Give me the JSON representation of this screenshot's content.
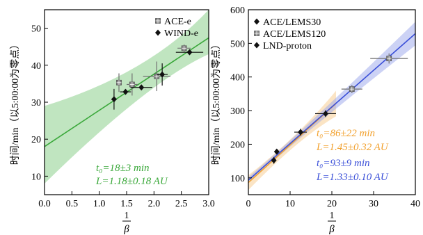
{
  "chart_data": [
    {
      "type": "scatter",
      "title": "",
      "xlabel": "1/β",
      "ylabel": "时间/min（以5:00:00为零点）",
      "xlim": [
        0.0,
        3.0
      ],
      "ylim": [
        5,
        55
      ],
      "xticks": [
        "0.0",
        "0.5",
        "1.0",
        "1.5",
        "2.0",
        "2.5",
        "3.0"
      ],
      "yticks": [
        "10",
        "20",
        "30",
        "40",
        "50"
      ],
      "grid": false,
      "legend_position": "top-right",
      "series": [
        {
          "name": "ACE-e",
          "marker": "gray-cross",
          "points": [
            {
              "x": 1.36,
              "y": 35.3,
              "xerr": 0.05,
              "yerr": 2.5
            },
            {
              "x": 1.6,
              "y": 34.8,
              "xerr": 0.1,
              "yerr": 3.0
            },
            {
              "x": 2.05,
              "y": 37.0,
              "xerr": 0.25,
              "yerr": 4.0
            },
            {
              "x": 2.55,
              "y": 44.6,
              "xerr": 0.12,
              "yerr": 1.0
            }
          ]
        },
        {
          "name": "WIND-e",
          "marker": "black-diamond",
          "points": [
            {
              "x": 1.27,
              "y": 30.8,
              "xerr": 0.05,
              "yerr": 2.8
            },
            {
              "x": 1.48,
              "y": 32.8,
              "xerr": 0.1,
              "yerr": 0.7
            },
            {
              "x": 1.77,
              "y": 34.0,
              "xerr": 0.2,
              "yerr": 0.5
            },
            {
              "x": 2.15,
              "y": 37.5,
              "xerr": 0.1,
              "yerr": 3.0
            },
            {
              "x": 2.65,
              "y": 43.5,
              "xerr": 0.25,
              "yerr": 0.5
            }
          ]
        }
      ],
      "fit": {
        "intercept": 18,
        "slope": 9.8,
        "band_left": [
          8,
          29
        ],
        "band_right": [
          43,
          55
        ],
        "color": "#3aa83a",
        "band_color": "#8ccf8c"
      },
      "annotations": [
        {
          "text": "t₀=18±3 min",
          "color": "#3aa83a"
        },
        {
          "text": "L=1.18±0.18 AU",
          "color": "#3aa83a"
        }
      ]
    },
    {
      "type": "scatter",
      "title": "",
      "xlabel": "1/β",
      "ylabel": "时间/min（以5:00:00为零点）",
      "xlim": [
        0,
        40
      ],
      "ylim": [
        50,
        600
      ],
      "xticks": [
        "0",
        "10",
        "20",
        "30",
        "40"
      ],
      "yticks": [
        "100",
        "200",
        "300",
        "400",
        "500",
        "600"
      ],
      "grid": false,
      "legend_position": "top-left",
      "series": [
        {
          "name": "ACE/LEMS30",
          "marker": "black-diamond",
          "points": [
            {
              "x": 6.8,
              "y": 178,
              "xerr": 0.3,
              "yerr": 8
            },
            {
              "x": 12.5,
              "y": 236,
              "xerr": 1.5,
              "yerr": 10
            },
            {
              "x": 18.5,
              "y": 291,
              "xerr": 2.5,
              "yerr": 10
            }
          ]
        },
        {
          "name": "ACE/LEMS120",
          "marker": "gray-cross",
          "points": [
            {
              "x": 24.8,
              "y": 364,
              "xerr": 2.5,
              "yerr": 12
            },
            {
              "x": 33.7,
              "y": 455,
              "xerr": 4.5,
              "yerr": 15
            }
          ]
        },
        {
          "name": "LND-proton",
          "marker": "black-diamond",
          "points": [
            {
              "x": 6.1,
              "y": 152,
              "xerr": 0.2,
              "yerr": 10
            }
          ]
        }
      ],
      "fits": [
        {
          "name": "orange",
          "intercept": 86,
          "slope": 11.2,
          "x_range": [
            0,
            21
          ],
          "band_spread": [
            22,
            38
          ],
          "color": "#f2a12e",
          "band_color": "#f7c98a"
        },
        {
          "name": "blue",
          "intercept": 93,
          "slope": 10.9,
          "x_range": [
            0,
            40
          ],
          "band_spread": [
            9,
            35
          ],
          "color": "#3a4fd8",
          "band_color": "#9aa6ec"
        }
      ],
      "annotations": [
        {
          "text": "t₀=86±22 min",
          "color": "#f2a12e"
        },
        {
          "text": "L=1.45±0.32 AU",
          "color": "#f2a12e"
        },
        {
          "text": "t₀=93±9 min",
          "color": "#3a4fd8"
        },
        {
          "text": "L=1.33±0.10 AU",
          "color": "#3a4fd8"
        }
      ]
    }
  ]
}
